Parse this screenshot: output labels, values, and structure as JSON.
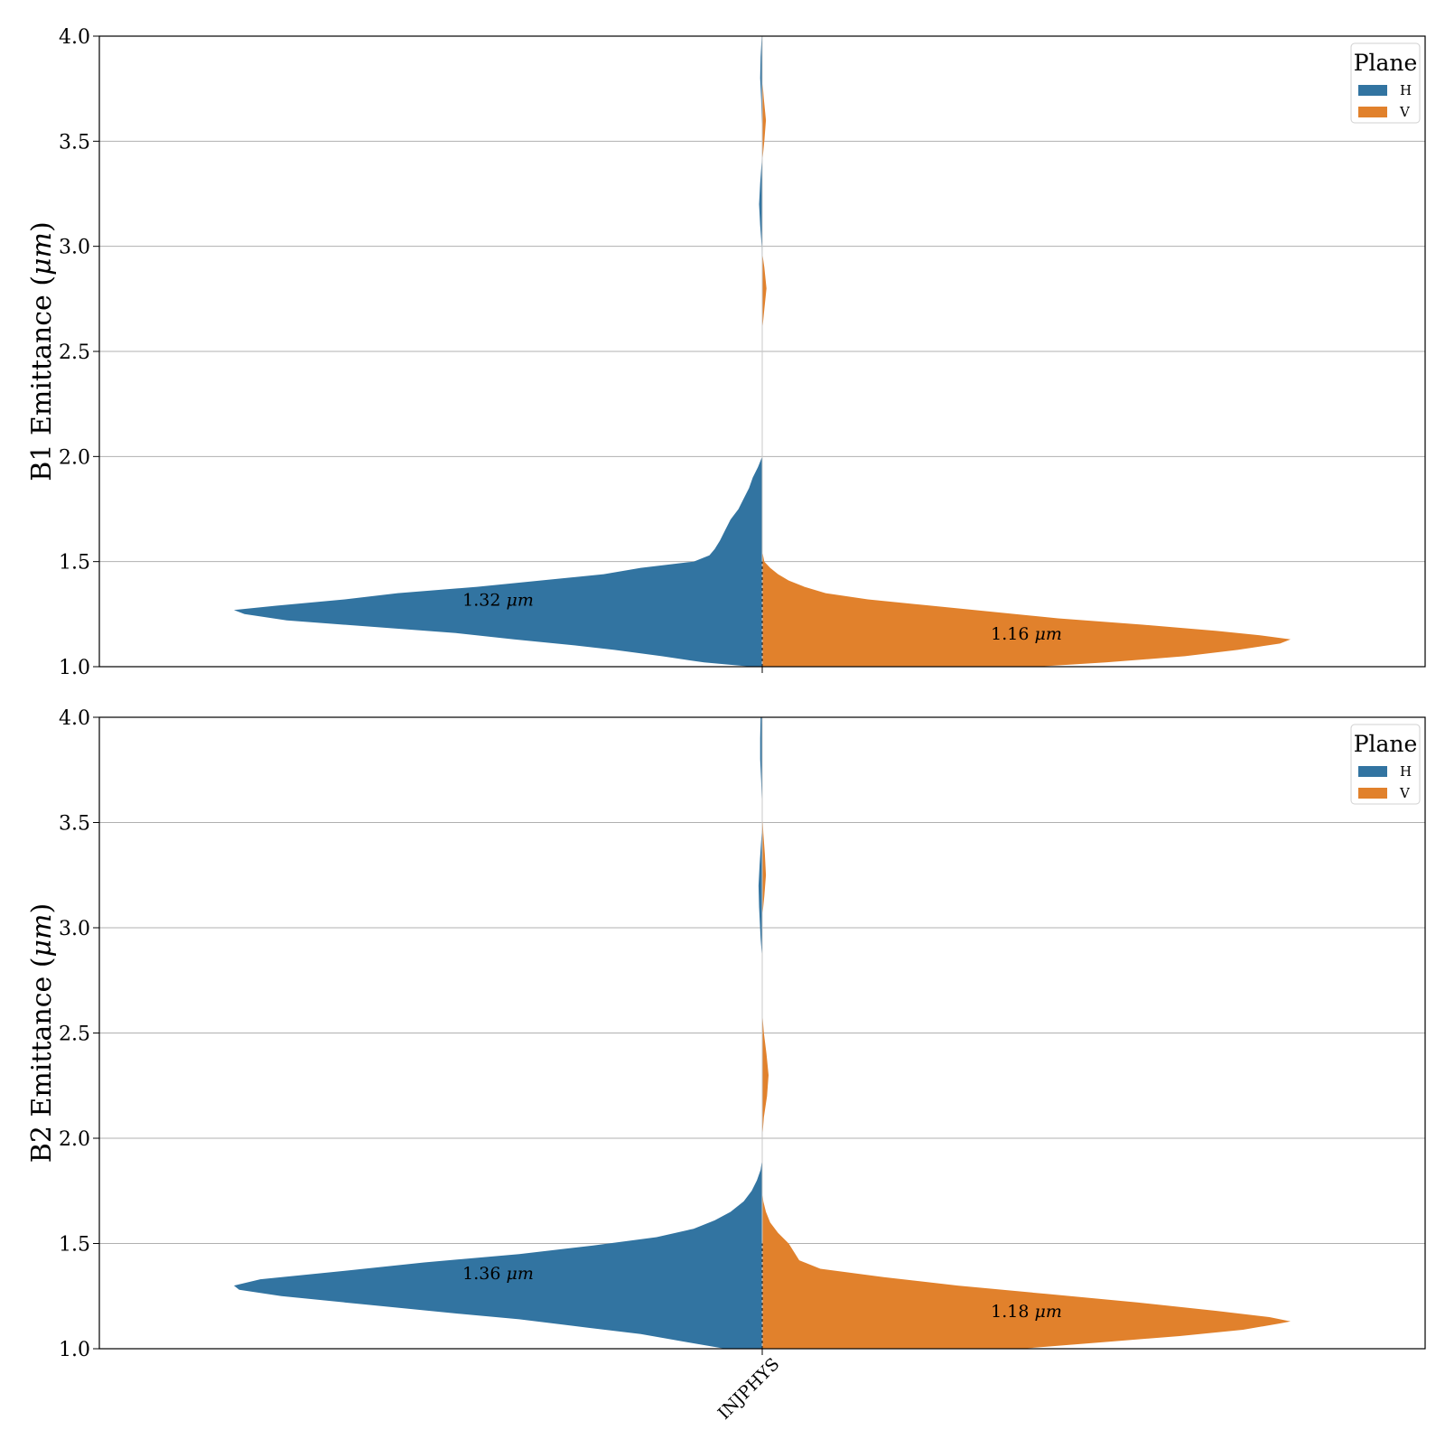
{
  "chart_data": [
    {
      "type": "violin",
      "ylabel": "B1 Emittance (μm)",
      "ylim": [
        1.0,
        4.0
      ],
      "yticks": [
        "1.0",
        "1.5",
        "2.0",
        "2.5",
        "3.0",
        "3.5",
        "4.0"
      ],
      "grid": "horizontal",
      "category": "INJPHYS",
      "legend": {
        "title": "Plane",
        "placement": "top-right",
        "entries": [
          "H",
          "V"
        ]
      },
      "series": [
        {
          "name": "H",
          "color": "#3274a1",
          "side": "left",
          "median_label": "1.32 μm",
          "median": 1.32,
          "density": [
            [
              1.0,
              0.02
            ],
            [
              1.02,
              0.11
            ],
            [
              1.05,
              0.19
            ],
            [
              1.08,
              0.28
            ],
            [
              1.1,
              0.35
            ],
            [
              1.13,
              0.47
            ],
            [
              1.16,
              0.58
            ],
            [
              1.19,
              0.74
            ],
            [
              1.22,
              0.9
            ],
            [
              1.25,
              0.98
            ],
            [
              1.27,
              1.0
            ],
            [
              1.29,
              0.92
            ],
            [
              1.32,
              0.79
            ],
            [
              1.35,
              0.69
            ],
            [
              1.38,
              0.54
            ],
            [
              1.41,
              0.42
            ],
            [
              1.44,
              0.3
            ],
            [
              1.47,
              0.23
            ],
            [
              1.5,
              0.13
            ],
            [
              1.53,
              0.1
            ],
            [
              1.56,
              0.09
            ],
            [
              1.6,
              0.08
            ],
            [
              1.65,
              0.07
            ],
            [
              1.7,
              0.06
            ],
            [
              1.75,
              0.045
            ],
            [
              1.8,
              0.035
            ],
            [
              1.85,
              0.025
            ],
            [
              1.9,
              0.018
            ],
            [
              1.95,
              0.008
            ],
            [
              2.0,
              0.0
            ],
            [
              2.1,
              0.0
            ],
            [
              2.6,
              0.0
            ],
            [
              3.0,
              0.001
            ],
            [
              3.1,
              0.004
            ],
            [
              3.2,
              0.006
            ],
            [
              3.3,
              0.004
            ],
            [
              3.4,
              0.001
            ],
            [
              3.5,
              0.0
            ],
            [
              3.7,
              0.002
            ],
            [
              3.8,
              0.004
            ],
            [
              3.9,
              0.003
            ],
            [
              4.0,
              0.001
            ]
          ]
        },
        {
          "name": "V",
          "color": "#e1812c",
          "side": "right",
          "median_label": "1.16 μm",
          "median": 1.16,
          "density": [
            [
              1.0,
              0.52
            ],
            [
              1.02,
              0.65
            ],
            [
              1.05,
              0.8
            ],
            [
              1.08,
              0.9
            ],
            [
              1.11,
              0.98
            ],
            [
              1.13,
              1.0
            ],
            [
              1.15,
              0.94
            ],
            [
              1.17,
              0.86
            ],
            [
              1.2,
              0.72
            ],
            [
              1.23,
              0.56
            ],
            [
              1.26,
              0.44
            ],
            [
              1.29,
              0.32
            ],
            [
              1.32,
              0.2
            ],
            [
              1.35,
              0.12
            ],
            [
              1.38,
              0.08
            ],
            [
              1.41,
              0.05
            ],
            [
              1.44,
              0.03
            ],
            [
              1.47,
              0.015
            ],
            [
              1.5,
              0.004
            ],
            [
              1.55,
              0.0
            ],
            [
              2.6,
              0.0
            ],
            [
              2.7,
              0.004
            ],
            [
              2.8,
              0.008
            ],
            [
              2.9,
              0.004
            ],
            [
              2.97,
              0.0
            ],
            [
              3.4,
              0.0
            ],
            [
              3.5,
              0.004
            ],
            [
              3.6,
              0.007
            ],
            [
              3.7,
              0.003
            ],
            [
              3.8,
              0.0
            ]
          ]
        }
      ]
    },
    {
      "type": "violin",
      "ylabel": "B2 Emittance (μm)",
      "ylim": [
        1.0,
        4.0
      ],
      "yticks": [
        "1.0",
        "1.5",
        "2.0",
        "2.5",
        "3.0",
        "3.5",
        "4.0"
      ],
      "grid": "horizontal",
      "category": "INJPHYS",
      "legend": {
        "title": "Plane",
        "placement": "top-right",
        "entries": [
          "H",
          "V"
        ]
      },
      "series": [
        {
          "name": "H",
          "color": "#3274a1",
          "side": "left",
          "median_label": "1.36 μm",
          "median": 1.36,
          "density": [
            [
              1.0,
              0.07
            ],
            [
              1.03,
              0.14
            ],
            [
              1.07,
              0.23
            ],
            [
              1.1,
              0.33
            ],
            [
              1.14,
              0.46
            ],
            [
              1.17,
              0.59
            ],
            [
              1.21,
              0.75
            ],
            [
              1.25,
              0.91
            ],
            [
              1.28,
              0.99
            ],
            [
              1.3,
              1.0
            ],
            [
              1.33,
              0.95
            ],
            [
              1.37,
              0.79
            ],
            [
              1.41,
              0.64
            ],
            [
              1.45,
              0.46
            ],
            [
              1.49,
              0.32
            ],
            [
              1.53,
              0.2
            ],
            [
              1.57,
              0.13
            ],
            [
              1.61,
              0.09
            ],
            [
              1.65,
              0.06
            ],
            [
              1.7,
              0.035
            ],
            [
              1.75,
              0.02
            ],
            [
              1.8,
              0.01
            ],
            [
              1.85,
              0.003
            ],
            [
              1.9,
              0.0
            ],
            [
              2.1,
              0.0
            ],
            [
              2.85,
              0.0
            ],
            [
              2.95,
              0.003
            ],
            [
              3.1,
              0.006
            ],
            [
              3.2,
              0.007
            ],
            [
              3.3,
              0.005
            ],
            [
              3.45,
              0.001
            ],
            [
              3.55,
              0.0
            ],
            [
              3.7,
              0.002
            ],
            [
              3.8,
              0.004
            ],
            [
              3.9,
              0.004
            ],
            [
              4.0,
              0.003
            ]
          ]
        },
        {
          "name": "V",
          "color": "#e1812c",
          "side": "right",
          "median_label": "1.18 μm",
          "median": 1.18,
          "density": [
            [
              1.0,
              0.49
            ],
            [
              1.03,
              0.64
            ],
            [
              1.06,
              0.79
            ],
            [
              1.09,
              0.91
            ],
            [
              1.12,
              0.98
            ],
            [
              1.13,
              1.0
            ],
            [
              1.15,
              0.96
            ],
            [
              1.18,
              0.86
            ],
            [
              1.22,
              0.71
            ],
            [
              1.26,
              0.54
            ],
            [
              1.3,
              0.37
            ],
            [
              1.34,
              0.23
            ],
            [
              1.38,
              0.11
            ],
            [
              1.42,
              0.07
            ],
            [
              1.46,
              0.06
            ],
            [
              1.5,
              0.05
            ],
            [
              1.55,
              0.03
            ],
            [
              1.6,
              0.015
            ],
            [
              1.65,
              0.007
            ],
            [
              1.7,
              0.002
            ],
            [
              1.75,
              0.0
            ],
            [
              2.0,
              0.0
            ],
            [
              2.1,
              0.003
            ],
            [
              2.2,
              0.009
            ],
            [
              2.3,
              0.012
            ],
            [
              2.4,
              0.008
            ],
            [
              2.5,
              0.003
            ],
            [
              2.6,
              0.0
            ],
            [
              3.05,
              0.0
            ],
            [
              3.15,
              0.004
            ],
            [
              3.25,
              0.007
            ],
            [
              3.35,
              0.005
            ],
            [
              3.45,
              0.002
            ],
            [
              3.55,
              0.0
            ]
          ]
        }
      ]
    }
  ]
}
